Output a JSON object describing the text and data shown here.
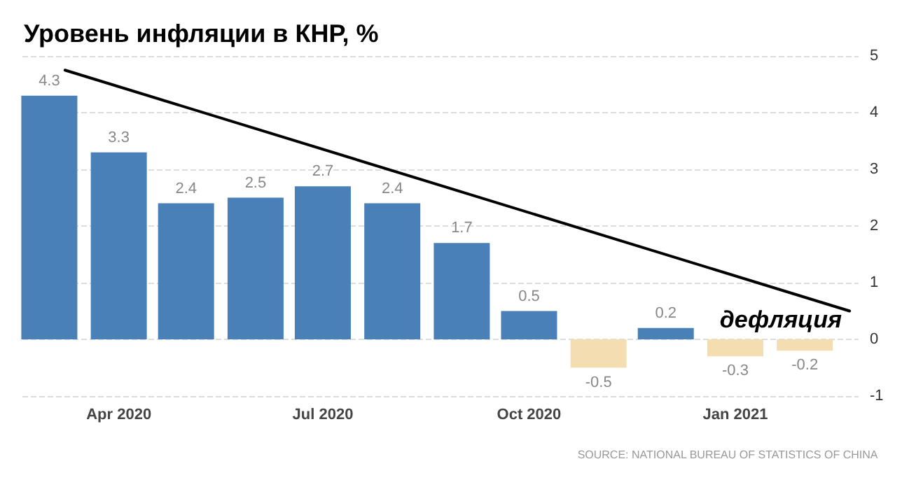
{
  "chart_data": {
    "type": "bar",
    "title": "Уровень инфляции в КНР, %",
    "x": [
      "2020-03",
      "2020-04",
      "2020-05",
      "2020-06",
      "2020-07",
      "2020-08",
      "2020-09",
      "2020-10",
      "2020-11",
      "2020-12",
      "2021-01",
      "2021-02"
    ],
    "values": [
      4.3,
      3.3,
      2.4,
      2.5,
      2.7,
      2.4,
      1.7,
      0.5,
      -0.5,
      0.2,
      -0.3,
      -0.2
    ],
    "colors": [
      "#4a80b8",
      "#4a80b8",
      "#4a80b8",
      "#4a80b8",
      "#4a80b8",
      "#4a80b8",
      "#4a80b8",
      "#4a80b8",
      "#f4ddb0",
      "#4a80b8",
      "#f4ddb0",
      "#f4ddb0"
    ],
    "series": [
      {
        "type": "line",
        "color": "#000000",
        "x": [
          "2020-03-08",
          "2021-02-21"
        ],
        "values": [
          4.75,
          0.5
        ]
      }
    ],
    "value_labels": [
      "4.3",
      "3.3",
      "2.4",
      "2.5",
      "2.7",
      "2.4",
      "1.7",
      "0.5",
      "-0.5",
      "0.2",
      "-0.3",
      "-0.2"
    ],
    "xlim": [
      "2020-02-18",
      "2021-02-25"
    ],
    "xticks": [
      {
        "value": "2020-04",
        "label": "Apr 2020"
      },
      {
        "value": "2020-07",
        "label": "Jul 2020"
      },
      {
        "value": "2020-10",
        "label": "Oct 2020"
      },
      {
        "value": "2021-01",
        "label": "Jan 2021"
      }
    ],
    "ylim": [
      -1,
      5
    ],
    "yticks": [
      -1,
      0,
      1,
      2,
      3,
      4,
      5
    ],
    "grid": "y",
    "annotations": [
      "дефляция",
      "SOURCE: NATIONAL BUREAU OF STATISTICS OF CHINA"
    ]
  }
}
